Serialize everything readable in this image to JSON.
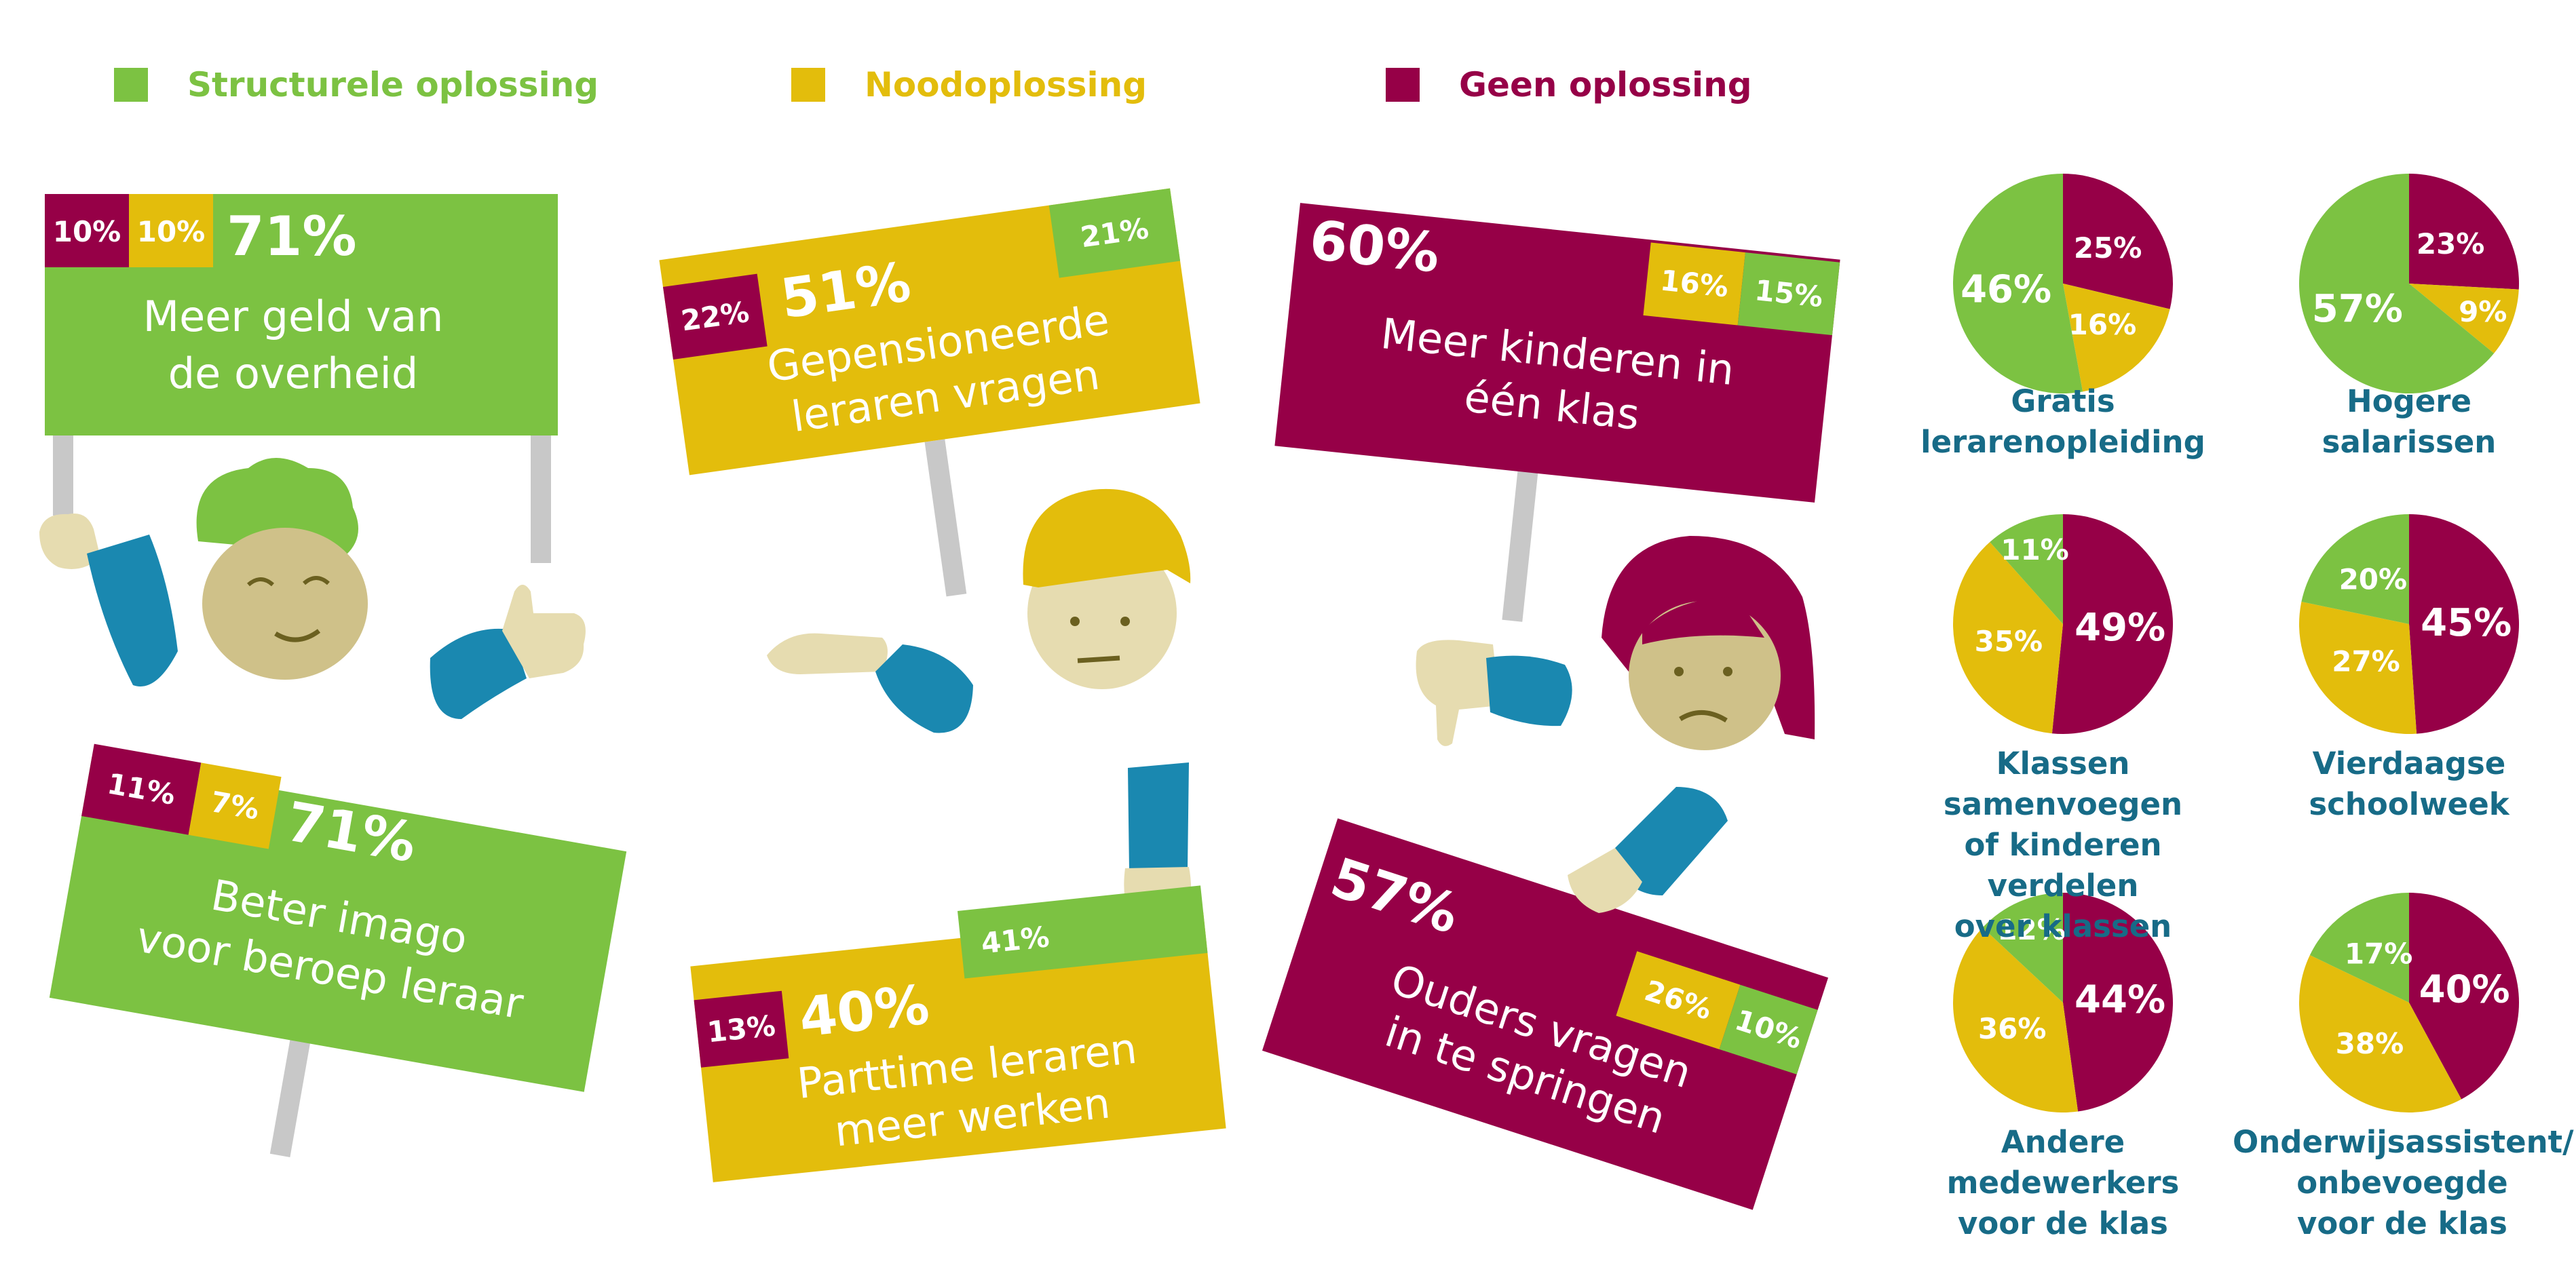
{
  "colors": {
    "structural": "#7cc242",
    "emergency": "#e3bd0c",
    "none": "#960047",
    "caption": "#176b87"
  },
  "legend": [
    {
      "label": "Structurele oplossing",
      "color": "#7cc242"
    },
    {
      "label": "Noodoplossing",
      "color": "#e3bd0c"
    },
    {
      "label": "Geen oplossing",
      "color": "#960047"
    }
  ],
  "chart_data": [
    {
      "type": "bar",
      "categories": [
        "Meer geld van de overheid",
        "Gepensioneerde leraren vragen",
        "Meer kinderen in één klas",
        "Beter imago voor beroep leraar",
        "Parttime leraren meer werken",
        "Ouders vragen in te springen"
      ],
      "series": [
        {
          "name": "Structurele oplossing",
          "values": [
            71,
            21,
            15,
            71,
            41,
            10
          ]
        },
        {
          "name": "Noodoplossing",
          "values": [
            10,
            51,
            16,
            7,
            40,
            26
          ]
        },
        {
          "name": "Geen oplossing",
          "values": [
            10,
            22,
            60,
            11,
            13,
            57
          ]
        }
      ],
      "signs": [
        {
          "lines": [
            "Meer geld van",
            "de overheid"
          ],
          "main": "71%",
          "chips": [
            "10%",
            "10%"
          ]
        },
        {
          "lines": [
            "Gepensioneerde",
            "leraren vragen"
          ],
          "main": "51%",
          "chips": [
            "22%",
            "21%"
          ]
        },
        {
          "lines": [
            "Meer kinderen in",
            "één klas"
          ],
          "main": "60%",
          "chips": [
            "16%",
            "15%"
          ]
        },
        {
          "lines": [
            "Beter imago",
            "voor beroep leraar"
          ],
          "main": "71%",
          "chips": [
            "11%",
            "7%"
          ]
        },
        {
          "lines": [
            "Parttime leraren",
            "meer werken"
          ],
          "main": "40%",
          "chips": [
            "13%",
            "41%"
          ]
        },
        {
          "lines": [
            "Ouders vragen",
            "in te springen"
          ],
          "main": "57%",
          "chips": [
            "26%",
            "10%"
          ]
        }
      ]
    },
    {
      "type": "pie",
      "series_names": [
        "Structurele oplossing",
        "Noodoplossing",
        "Geen oplossing"
      ],
      "pies": [
        {
          "caption": [
            "Gratis",
            "lerarenopleiding"
          ],
          "structural": 46,
          "emergency": 16,
          "none": 25
        },
        {
          "caption": [
            "Hogere",
            "salarissen"
          ],
          "structural": 57,
          "emergency": 9,
          "none": 23
        },
        {
          "caption": [
            "Klassen samenvoegen",
            "of kinderen verdelen",
            "over klassen"
          ],
          "structural": 11,
          "emergency": 35,
          "none": 49
        },
        {
          "caption": [
            "Vierdaagse",
            "schoolweek"
          ],
          "structural": 20,
          "emergency": 27,
          "none": 45
        },
        {
          "caption": [
            "Andere medewerkers",
            "voor de klas"
          ],
          "structural": 12,
          "emergency": 36,
          "none": 44
        },
        {
          "caption": [
            "Onderwijsassistent/",
            "onbevoegde",
            "voor de klas"
          ],
          "structural": 17,
          "emergency": 38,
          "none": 40
        }
      ]
    }
  ]
}
